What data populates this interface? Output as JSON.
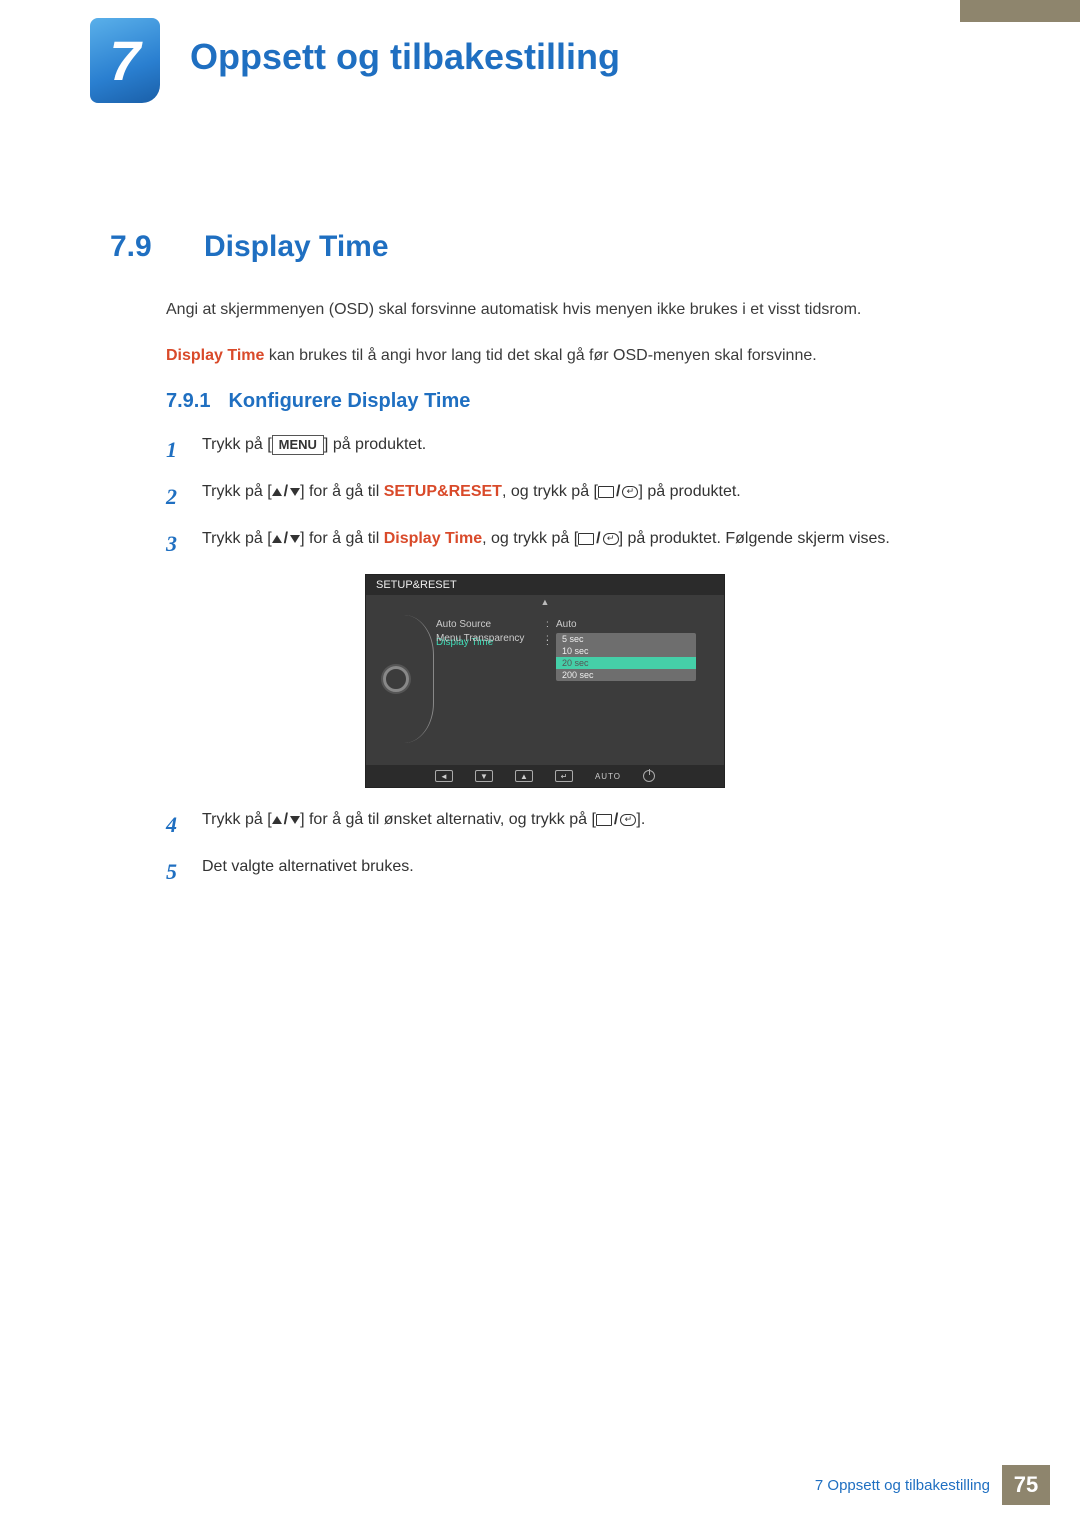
{
  "header_stripe_color": "#8e856d",
  "chapter": {
    "number": "7",
    "title": "Oppsett og tilbakestilling"
  },
  "section": {
    "number": "7.9",
    "title": "Display Time"
  },
  "intro_para": "Angi at skjermmenyen (OSD) skal forsvinne automatisk hvis menyen ikke brukes i et visst tidsrom.",
  "para2_highlight": "Display Time",
  "para2_rest": " kan brukes til å angi hvor lang tid det skal gå før OSD-menyen skal forsvinne.",
  "subsection": {
    "number": "7.9.1",
    "title": "Konfigurere Display Time"
  },
  "steps": {
    "s1": {
      "num": "1",
      "pre": "Trykk på [",
      "menu": "MENU",
      "post": "] på produktet."
    },
    "s2": {
      "num": "2",
      "pre": "Trykk på [",
      "mid1": "] for å gå til ",
      "target": "SETUP&RESET",
      "mid2": ", og trykk på [",
      "post": "] på produktet."
    },
    "s3": {
      "num": "3",
      "pre": "Trykk på [",
      "mid1": "] for å gå til ",
      "target": "Display Time",
      "mid2": ", og trykk på [",
      "post": "] på produktet. Følgende skjerm vises."
    },
    "s4": {
      "num": "4",
      "pre": "Trykk på [",
      "mid1": "] for å gå til ønsket alternativ, og trykk på [",
      "post": "]."
    },
    "s5": {
      "num": "5",
      "text": "Det valgte alternativet brukes."
    }
  },
  "osd": {
    "title": "SETUP&RESET",
    "bg": "#3c3c3c",
    "accent_color": "#45cfa8",
    "rows": {
      "r1_label": "Auto Source",
      "r1_value": "Auto",
      "r2_label": "Display Time",
      "r3_label": "Menu Transparency"
    },
    "options": {
      "o1": "5 sec",
      "o2": "10 sec",
      "o3_selected": "20 sec",
      "o4": "200 sec"
    },
    "footer_auto": "AUTO"
  },
  "footer": {
    "text": "7 Oppsett og tilbakestilling",
    "page": "75"
  }
}
